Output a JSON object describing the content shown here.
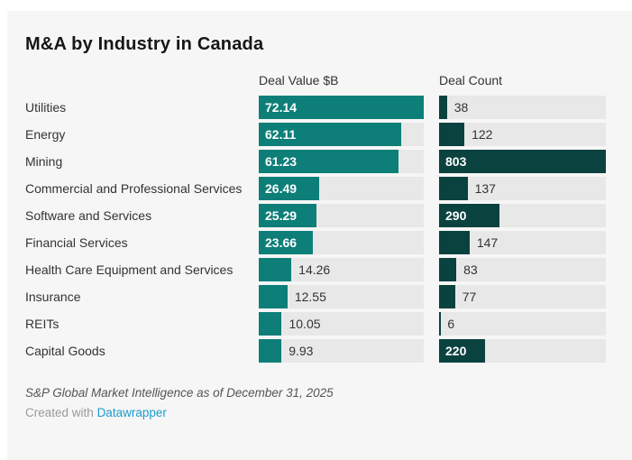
{
  "chart_data": {
    "type": "bar",
    "orientation": "horizontal",
    "title": "M&A by Industry in Canada",
    "grid": false,
    "legend_position": "none",
    "columns": [
      {
        "key": "deal_value",
        "label": "Deal Value $B",
        "max": 72.14,
        "color": "#0d7f78"
      },
      {
        "key": "deal_count",
        "label": "Deal Count",
        "max": 803,
        "color": "#0a423f"
      }
    ],
    "categories": [
      "Utilities",
      "Energy",
      "Mining",
      "Commercial and Professional Services",
      "Software and Services",
      "Financial Services",
      "Health Care Equipment and Services",
      "Insurance",
      "REITs",
      "Capital Goods"
    ],
    "series": [
      {
        "name": "Deal Value $B",
        "values": [
          72.14,
          62.11,
          61.23,
          26.49,
          25.29,
          23.66,
          14.26,
          12.55,
          10.05,
          9.93
        ]
      },
      {
        "name": "Deal Count",
        "values": [
          38,
          122,
          803,
          137,
          290,
          147,
          83,
          77,
          6,
          220
        ]
      }
    ]
  },
  "theme": {
    "canvas_bg": "#f6f6f6",
    "track": "#e8e8e8",
    "link": "#1d9bd0"
  },
  "footer": {
    "source": "S&P Global Market Intelligence as of December 31, 2025",
    "attribution_prefix": "Created with",
    "attribution_link": "Datawrapper"
  }
}
